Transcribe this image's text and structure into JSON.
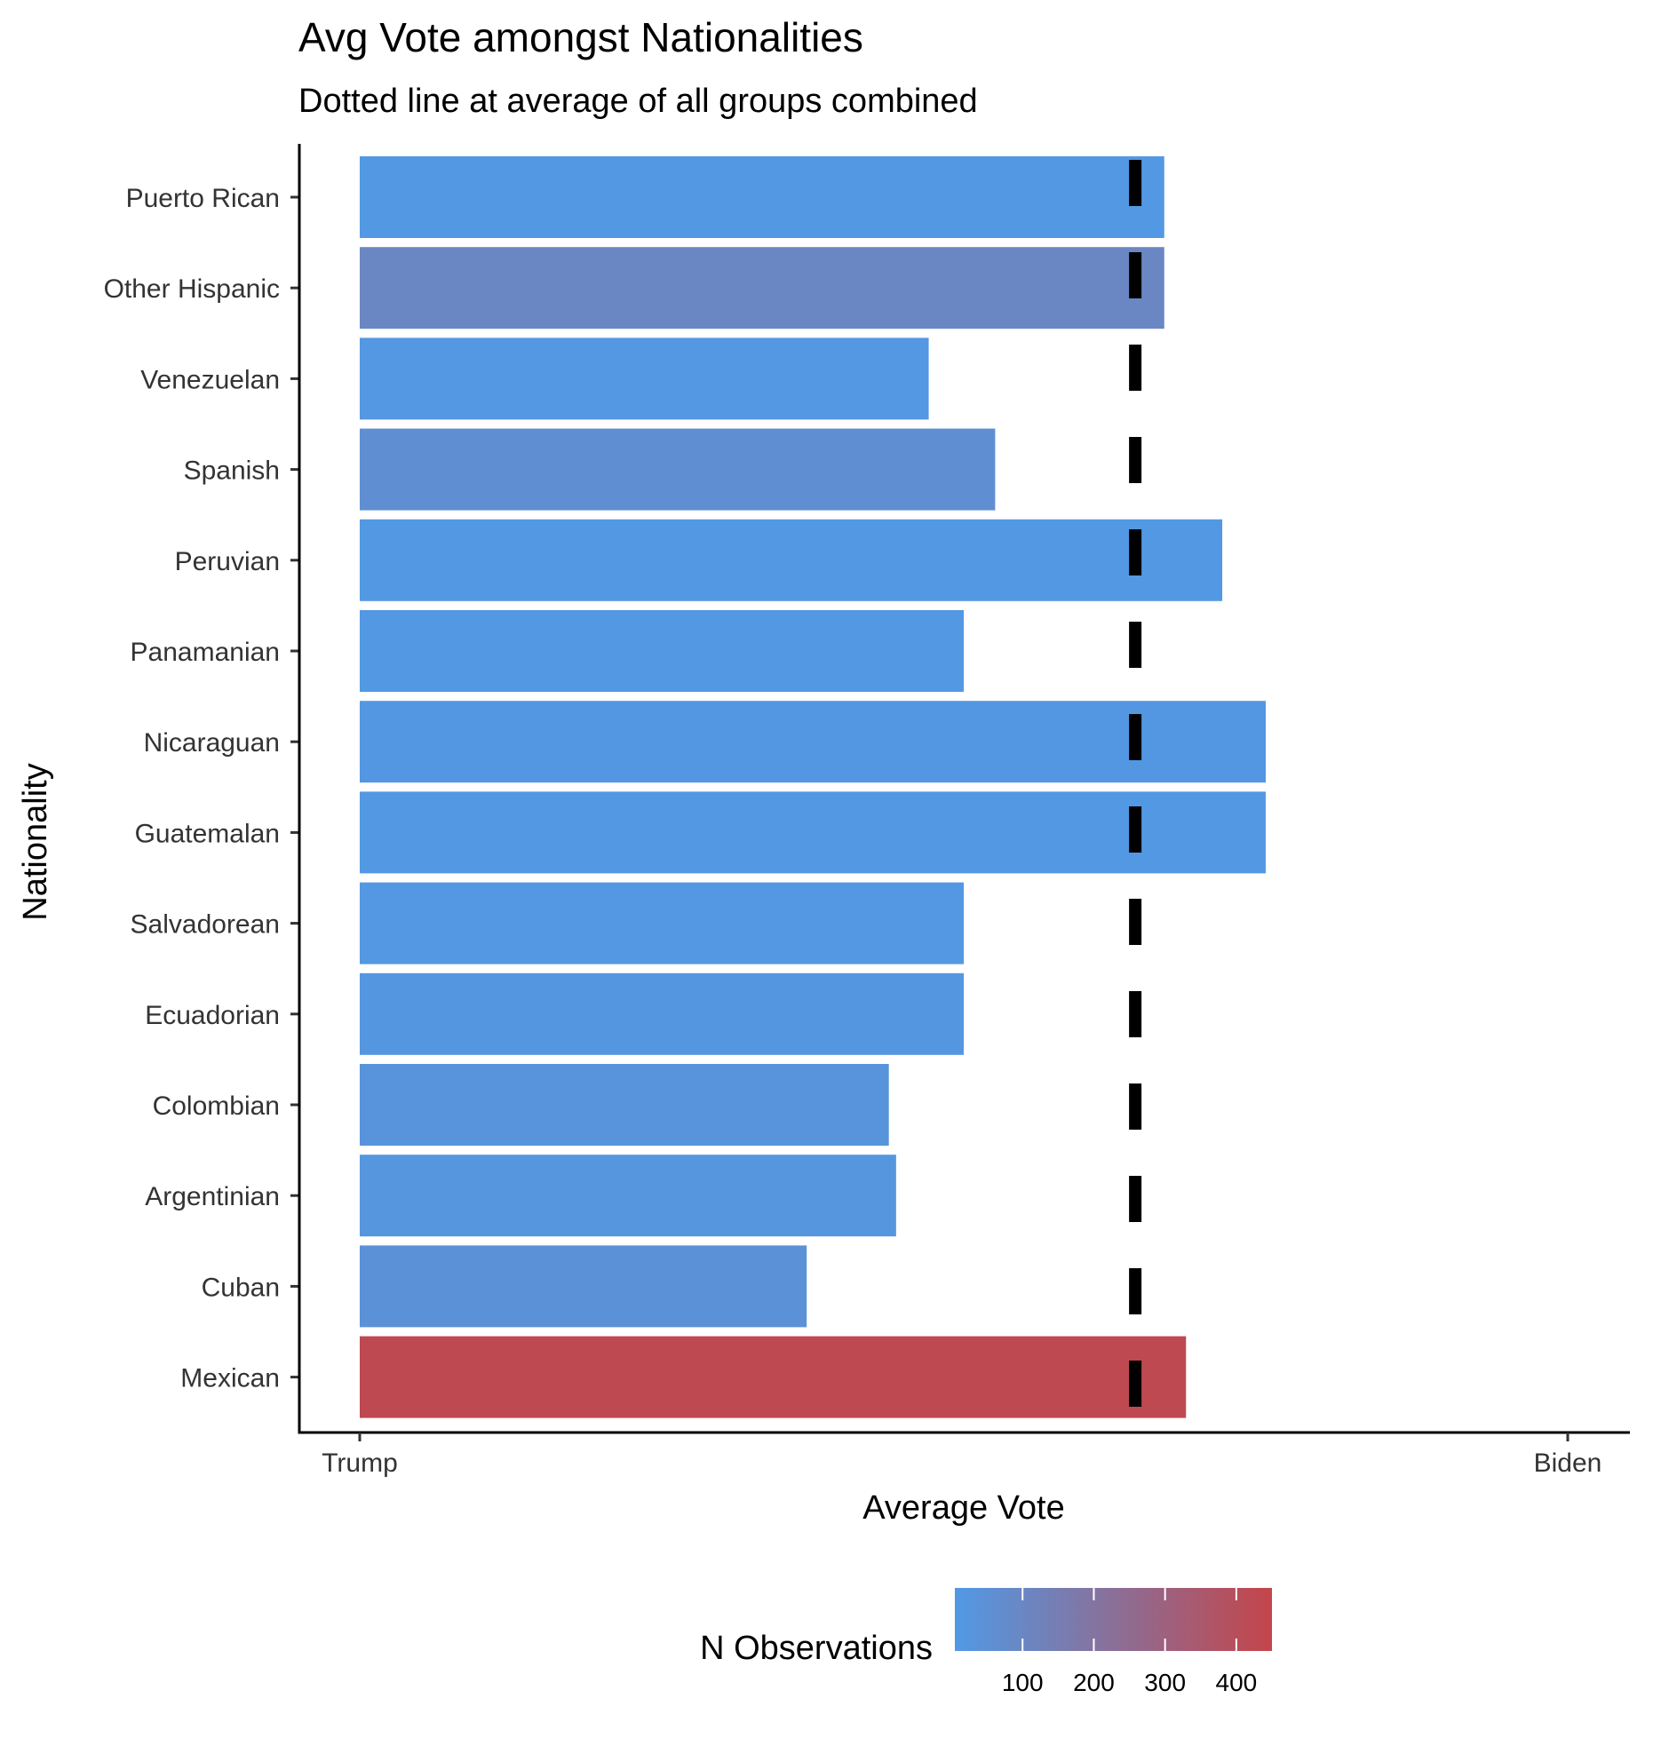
{
  "chart_data": {
    "type": "bar",
    "orientation": "horizontal",
    "title": "Avg Vote amongst Nationalities",
    "subtitle": "Dotted line at average of all groups combined",
    "xlabel": "Average Vote",
    "ylabel": "Nationality",
    "x_tick_labels": [
      "Trump",
      "Biden"
    ],
    "xlim": [
      0,
      1
    ],
    "categories": [
      "Puerto Rican",
      "Other Hispanic",
      "Venezuelan",
      "Spanish",
      "Peruvian",
      "Panamanian",
      "Nicaraguan",
      "Guatemalan",
      "Salvadorean",
      "Ecuadorian",
      "Colombian",
      "Argentinian",
      "Cuban",
      "Mexican"
    ],
    "values": [
      0.666,
      0.666,
      0.471,
      0.526,
      0.714,
      0.5,
      0.75,
      0.75,
      0.5,
      0.5,
      0.438,
      0.444,
      0.37,
      0.684
    ],
    "n_observations": [
      12,
      100,
      15,
      60,
      12,
      10,
      14,
      12,
      15,
      20,
      30,
      22,
      45,
      430
    ],
    "reference_line": {
      "value": 0.642,
      "style": "dashed"
    },
    "color_scale": {
      "title": "N Observations",
      "low_color": "#5199E5",
      "high_color": "#C4454A",
      "domain": [
        5,
        450
      ],
      "ticks": [
        100,
        200,
        300,
        400
      ]
    },
    "legend_position": "bottom",
    "grid": false
  }
}
